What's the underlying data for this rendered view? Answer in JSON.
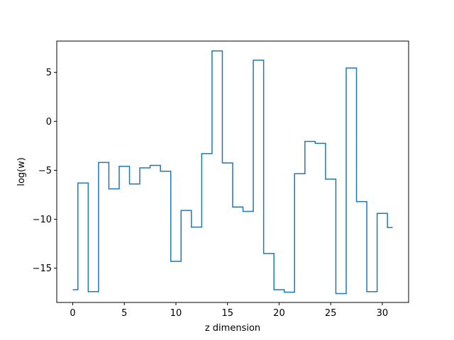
{
  "chart_data": {
    "type": "line",
    "drawstyle": "steps-mid",
    "title": "",
    "xlabel": "z dimension",
    "ylabel": "log(w)",
    "xlim": [
      -1.55,
      32.55
    ],
    "ylim": [
      -18.5,
      8.2
    ],
    "xticks": [
      0,
      5,
      10,
      15,
      20,
      25,
      30
    ],
    "yticks": [
      -15,
      -10,
      -5,
      0,
      5
    ],
    "ytick_labels": [
      "−15",
      "−10",
      "−5",
      "0",
      "5"
    ],
    "grid": false,
    "line_color": "#1f77b4",
    "series": [
      {
        "x": [
          0,
          1,
          2,
          3,
          4,
          5,
          6,
          7,
          8,
          9,
          10,
          11,
          12,
          13,
          14,
          15,
          16,
          17,
          18,
          19,
          20,
          21,
          22,
          23,
          24,
          25,
          26,
          27,
          28,
          29,
          30,
          31
        ],
        "y": [
          -17.2,
          -6.3,
          -17.4,
          -4.2,
          -6.9,
          -4.6,
          -6.4,
          -4.75,
          -4.5,
          -5.1,
          -14.3,
          -9.1,
          -10.8,
          -3.3,
          7.2,
          -4.25,
          -8.75,
          -9.2,
          6.25,
          -13.5,
          -17.2,
          -17.45,
          -5.35,
          -2.05,
          -2.25,
          -5.9,
          -17.6,
          5.45,
          -8.2,
          -17.4,
          -9.4,
          -10.85
        ]
      }
    ]
  }
}
